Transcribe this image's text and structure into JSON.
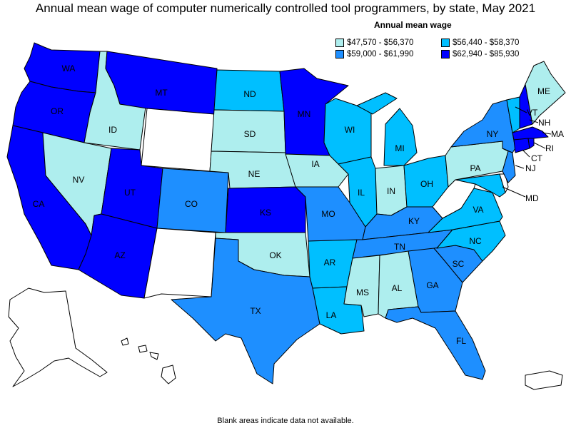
{
  "title": "Annual mean wage of computer numerically controlled tool programmers, by state, May 2021",
  "legend": {
    "title": "Annual mean wage",
    "items": [
      {
        "label": "$47,570 - $56,370",
        "color": "#aeeeee"
      },
      {
        "label": "$56,440 - $58,370",
        "color": "#00bfff"
      },
      {
        "label": "$59,000 - $61,990",
        "color": "#1e8fff"
      },
      {
        "label": "$62,940 - $85,930",
        "color": "#0000ff"
      }
    ]
  },
  "footnote": "Blank areas indicate data not available.",
  "colors": {
    "t1": "#aeeeee",
    "t2": "#00bfff",
    "t3": "#1e8fff",
    "t4": "#0000ff",
    "none": "#ffffff"
  },
  "states": {
    "WA": "WA",
    "OR": "OR",
    "CA": "CA",
    "ID": "ID",
    "NV": "NV",
    "MT": "MT",
    "UT": "UT",
    "AZ": "AZ",
    "CO": "CO",
    "ND": "ND",
    "SD": "SD",
    "NE": "NE",
    "KS": "KS",
    "OK": "OK",
    "TX": "TX",
    "MN": "MN",
    "IA": "IA",
    "MO": "MO",
    "AR": "AR",
    "LA": "LA",
    "WI": "WI",
    "IL": "IL",
    "MI": "MI",
    "IN": "IN",
    "OH": "OH",
    "KY": "KY",
    "TN": "TN",
    "MS": "MS",
    "AL": "AL",
    "GA": "GA",
    "FL": "FL",
    "SC": "SC",
    "NC": "NC",
    "VA": "VA",
    "PA": "PA",
    "NY": "NY",
    "ME": "ME",
    "VT": "VT",
    "NH": "NH",
    "MA": "MA",
    "CT": "CT",
    "RI": "RI",
    "NJ": "NJ",
    "MD": "MD"
  }
}
